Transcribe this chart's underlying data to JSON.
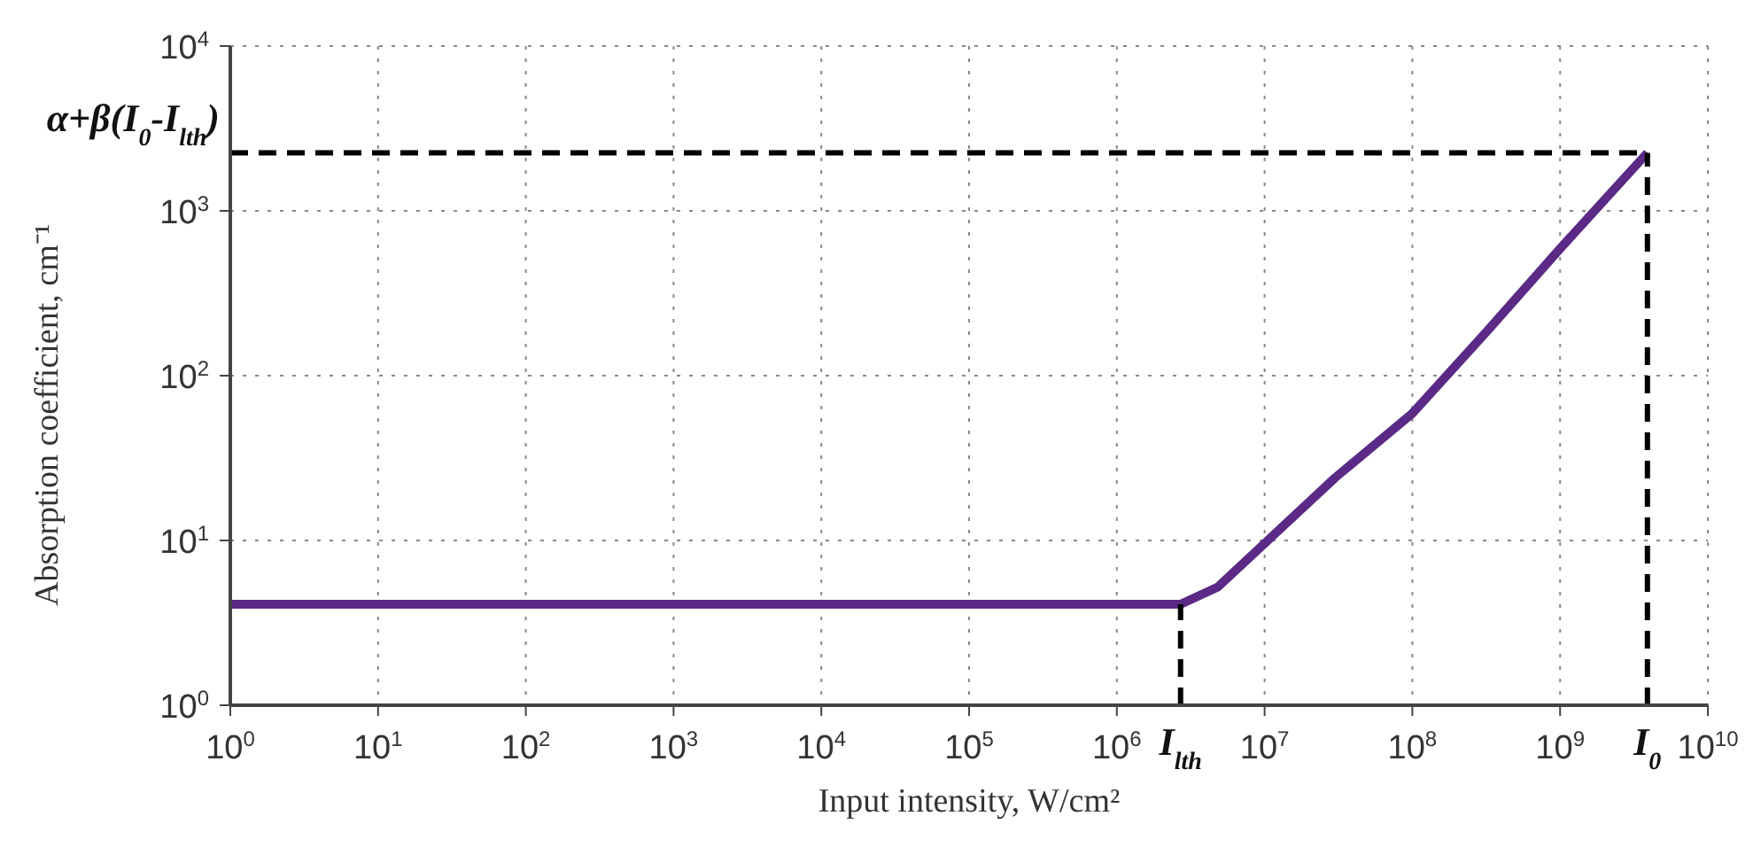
{
  "chart_data": {
    "type": "line",
    "xlabel": "Input intensity, W/cm²",
    "ylabel": "Absorption coefficient, cm⁻¹",
    "log": "xy",
    "grid": true,
    "marker": "none",
    "xlim": [
      1,
      10000000000
    ],
    "ylim": [
      1,
      10000
    ],
    "xticks": [
      {
        "value": 1,
        "label": "10$^{0}$"
      },
      {
        "value": 10,
        "label": "10$^{1}$"
      },
      {
        "value": 100,
        "label": "10$^{2}$"
      },
      {
        "value": 1000,
        "label": "10$^{3}$"
      },
      {
        "value": 10000,
        "label": "10$^{4}$"
      },
      {
        "value": 100000,
        "label": "10$^{5}$"
      },
      {
        "value": 1000000,
        "label": "10$^{6}$"
      },
      {
        "value": 10000000,
        "label": "10$^{7}$"
      },
      {
        "value": 100000000,
        "label": "10$^{8}$"
      },
      {
        "value": 1000000000,
        "label": "10$^{9}$"
      },
      {
        "value": 10000000000,
        "label": "10$^{10}$"
      }
    ],
    "yticks": [
      {
        "value": 1,
        "label": "10$^{0}$"
      },
      {
        "value": 10,
        "label": "10$^{1}$"
      },
      {
        "value": 100,
        "label": "10$^{2}$"
      },
      {
        "value": 1000,
        "label": "10$^{3}$"
      },
      {
        "value": 10000,
        "label": "10$^{4}$"
      }
    ],
    "series": [
      {
        "color": "#5b2a86",
        "line_style": "solid",
        "x": [
          1,
          2700000,
          4800000,
          10000000,
          30000000,
          100000000,
          320000000,
          1000000000,
          3900000000
        ],
        "values": [
          4.1,
          4.1,
          5.2,
          9.6,
          24,
          59,
          186,
          590,
          2250
        ]
      },
      {
        "color": "#000000",
        "line_style": "dashed",
        "x": [
          2700000,
          2700000
        ],
        "values": [
          1,
          4.1
        ]
      },
      {
        "color": "#000000",
        "line_style": "dashed",
        "x": [
          3900000000,
          3900000000
        ],
        "values": [
          1,
          2250
        ]
      },
      {
        "color": "#000000",
        "line_style": "dashed",
        "x": [
          1,
          3900000000
        ],
        "values": [
          2250,
          2250
        ]
      }
    ],
    "annotations": [
      {
        "text": "I$_{lth}$",
        "x": 2700000,
        "y": 1
      },
      {
        "text": "I$_{0}$",
        "x": 3900000000,
        "y": 1
      },
      {
        "text": "α+β(I$_{0}$-I$_{lth}$)",
        "x": 1,
        "y": 2250
      }
    ]
  }
}
